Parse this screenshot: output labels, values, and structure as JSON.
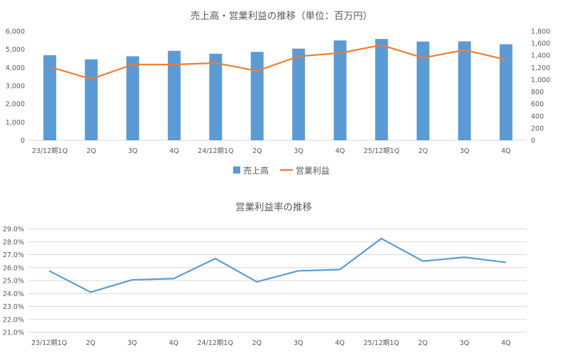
{
  "chart_data": [
    {
      "type": "bar+line",
      "title": "売上高・営業利益の推移（単位：百万円）",
      "categories": [
        "23/12期1Q",
        "2Q",
        "3Q",
        "4Q",
        "24/12期1Q",
        "2Q",
        "3Q",
        "4Q",
        "25/12期1Q",
        "2Q",
        "3Q",
        "4Q"
      ],
      "series": [
        {
          "name": "売上高",
          "type": "bar",
          "axis": "left",
          "color": "#5b9bd5",
          "values": [
            4680,
            4450,
            4620,
            4920,
            4760,
            4860,
            5040,
            5490,
            5570,
            5430,
            5440,
            5280
          ]
        },
        {
          "name": "営業利益",
          "type": "line",
          "axis": "right",
          "color": "#ed7d31",
          "values": [
            1210,
            1010,
            1250,
            1250,
            1275,
            1145,
            1385,
            1440,
            1570,
            1360,
            1490,
            1330
          ]
        }
      ],
      "left_axis": {
        "ylim": [
          0,
          6000
        ],
        "ticks": [
          "0",
          "1,000",
          "2,000",
          "3,000",
          "4,000",
          "5,000",
          "6,000"
        ]
      },
      "right_axis": {
        "ylim": [
          0,
          1800
        ],
        "ticks": [
          "0",
          "200",
          "400",
          "600",
          "800",
          "1,000",
          "1,200",
          "1,400",
          "1,600",
          "1,800"
        ]
      },
      "legend": "bottom",
      "grid": false
    },
    {
      "type": "line",
      "title": "営業利益率の推移",
      "categories": [
        "23/12期1Q",
        "2Q",
        "3Q",
        "4Q",
        "24/12期1Q",
        "2Q",
        "3Q",
        "4Q",
        "25/12期1Q",
        "2Q",
        "3Q",
        "4Q"
      ],
      "series": [
        {
          "color": "#5b9bd5",
          "values": [
            25.75,
            24.1,
            25.05,
            25.15,
            26.7,
            24.9,
            25.75,
            25.85,
            28.25,
            26.5,
            26.8,
            26.4
          ]
        }
      ],
      "y_axis": {
        "ylim": [
          21,
          29
        ],
        "ticks": [
          "21.0%",
          "22.0%",
          "23.0%",
          "24.0%",
          "25.0%",
          "26.0%",
          "27.0%",
          "28.0%",
          "29.0%"
        ]
      },
      "grid": true
    }
  ]
}
